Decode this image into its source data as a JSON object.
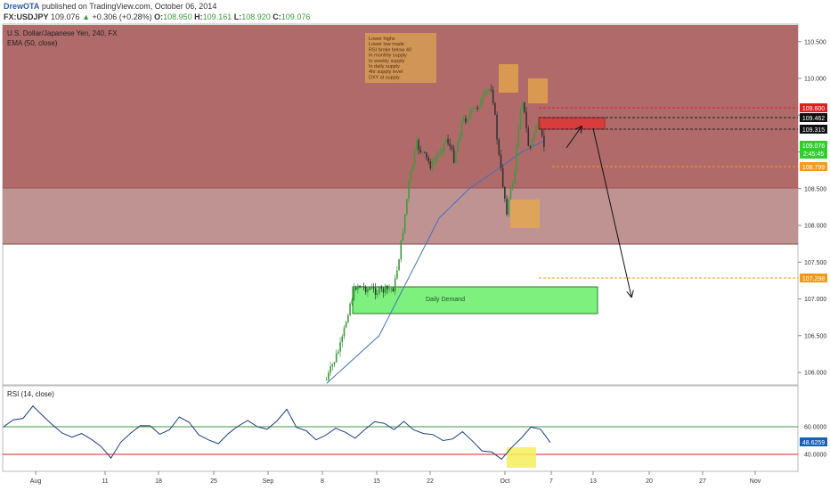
{
  "header": {
    "author": "DrewOTA",
    "published": "published on TradingView.com, October 06, 2014",
    "symbol": "FX:USDJPY",
    "last": "109.076",
    "change": "+0.306 (+0.28%)",
    "open_label": "O:",
    "open": "108.950",
    "high_label": "H:",
    "high": "109.161",
    "low_label": "L:",
    "low": "108.920",
    "close_label": "C:",
    "close": "109.076"
  },
  "chart_title": "U.S. Dollar/Japanese Yen, 240, FX",
  "ema_label": "EMA (50, close)",
  "rsi_label": "RSI (14, close)",
  "notes_box": {
    "lines": [
      "Lower highs",
      "Lower low made",
      "RSI broke below 40",
      "In monthly supply",
      "In weekly supply",
      "In daily supply",
      "4hr supply level",
      "DXY at supply"
    ]
  },
  "daily_demand_label": "Daily Demand",
  "badges": {
    "b109600": "109.600",
    "b109462": "109.462",
    "b109315": "109.315",
    "b109076": "109.076",
    "countdown": "2:45:45",
    "b108799": "108.799",
    "b107298": "107.298",
    "rsi_value": "48.6259"
  },
  "colors": {
    "bull_candle": "#3d9a3d",
    "bear_candle": "#333333",
    "ema": "#3f6fc0",
    "rsi_line": "#1a3d8f",
    "supply_zone": "#a53535",
    "demand_zone": "#7ef07e",
    "highlight_orange": "#e8a94a",
    "highlight_yellow": "#f5ef5a"
  },
  "chart_data": {
    "type": "candlestick",
    "title": "U.S. Dollar/Japanese Yen, 240, FX",
    "price_axis": {
      "ticks": [
        "110.500",
        "110.000",
        "109.500",
        "109.000",
        "108.500",
        "108.000",
        "107.500",
        "107.000",
        "106.500",
        "106.000"
      ],
      "range": [
        105.8,
        110.85
      ]
    },
    "date_axis": {
      "ticks": [
        "Aug",
        "11",
        "18",
        "25",
        "Sep",
        "8",
        "15",
        "22",
        "Oct",
        "7",
        "13",
        "20",
        "27",
        "Nov"
      ]
    },
    "price_path": {
      "dates": [
        "Sep 7",
        "Sep 9",
        "Sep 10",
        "Sep 11",
        "Sep 12",
        "Sep 14",
        "Sep 16",
        "Sep 17",
        "Sep 18",
        "Sep 19",
        "Sep 21",
        "Sep 23",
        "Sep 24",
        "Sep 25",
        "Sep 27",
        "Sep 29",
        "Sep 30",
        "Oct 1",
        "Oct 2",
        "Oct 3",
        "Oct 4",
        "Oct 5",
        "Oct 6"
      ],
      "values": [
        105.9,
        106.4,
        106.9,
        107.2,
        107.15,
        107.1,
        107.15,
        107.8,
        108.6,
        109.1,
        108.8,
        109.2,
        108.9,
        109.4,
        109.6,
        109.9,
        108.9,
        108.2,
        108.7,
        109.8,
        109.0,
        109.4,
        109.076
      ]
    },
    "ema_50": {
      "dates": [
        "Sep 7",
        "Sep 14",
        "Sep 18",
        "Sep 22",
        "Sep 26",
        "Oct 1",
        "Oct 3",
        "Oct 6"
      ],
      "values": [
        105.85,
        106.5,
        107.3,
        108.1,
        108.5,
        108.85,
        109.0,
        109.15
      ]
    },
    "rsi": {
      "range": [
        30,
        75
      ],
      "ticks": [
        "60.0000",
        "40.0000"
      ],
      "levels": [
        60,
        40
      ],
      "current": 48.6259
    },
    "levels": {
      "resistance_109_600": 109.6,
      "resistance_109_462": 109.462,
      "resistance_109_315": 109.315,
      "support_108_799": 108.799,
      "target_107_298": 107.298
    },
    "zones": [
      {
        "name": "supply",
        "from": 108.55,
        "to": 110.85
      },
      {
        "name": "supply-lower",
        "from": 107.75,
        "to": 108.55
      },
      {
        "name": "Daily Demand",
        "from": 106.8,
        "to": 107.2,
        "start": "Sep 12",
        "end": "Oct 15"
      },
      {
        "name": "4hr supply",
        "from": 109.32,
        "to": 109.46,
        "start": "Oct 6",
        "end": "Oct 12"
      }
    ]
  }
}
